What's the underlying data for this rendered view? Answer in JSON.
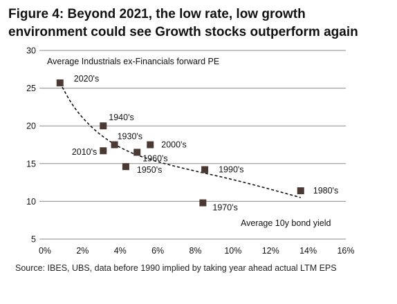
{
  "figure": {
    "title_line1": "Figure 4: Beyond 2021, the low rate, low growth",
    "title_line2": "environment could see Growth stocks outperform again",
    "source": "Source:  IBES, UBS, data before 1990 implied by taking year ahead actual LTM EPS"
  },
  "chart_data": {
    "type": "scatter",
    "ylabel": "Average Industrials ex-Financials forward PE",
    "xlabel": "Average 10y bond yield",
    "xlim": [
      0,
      16
    ],
    "ylim": [
      5,
      30
    ],
    "x_ticks": [
      "0%",
      "2%",
      "4%",
      "6%",
      "8%",
      "10%",
      "12%",
      "14%",
      "16%"
    ],
    "y_ticks": [
      "5",
      "10",
      "15",
      "20",
      "25",
      "30"
    ],
    "grid": "horizontal",
    "points": [
      {
        "label": "2020's",
        "x": 0.8,
        "y": 25.7
      },
      {
        "label": "1940's",
        "x": 3.1,
        "y": 20.0
      },
      {
        "label": "1930's",
        "x": 3.7,
        "y": 17.5
      },
      {
        "label": "2010's",
        "x": 3.1,
        "y": 16.7
      },
      {
        "label": "1960's",
        "x": 4.9,
        "y": 16.5
      },
      {
        "label": "2000's",
        "x": 5.6,
        "y": 17.5
      },
      {
        "label": "1950's",
        "x": 4.3,
        "y": 14.6
      },
      {
        "label": "1990's",
        "x": 8.5,
        "y": 14.2
      },
      {
        "label": "1980's",
        "x": 13.6,
        "y": 11.4
      },
      {
        "label": "1970's",
        "x": 8.4,
        "y": 9.8
      }
    ],
    "trendline": {
      "style": "dashed",
      "points": [
        {
          "x": 0.8,
          "y": 25.7
        },
        {
          "x": 1.5,
          "y": 22.5
        },
        {
          "x": 2.5,
          "y": 19.7
        },
        {
          "x": 3.5,
          "y": 17.8
        },
        {
          "x": 4.5,
          "y": 16.5
        },
        {
          "x": 5.5,
          "y": 15.6
        },
        {
          "x": 6.5,
          "y": 14.9
        },
        {
          "x": 8.0,
          "y": 14.0
        },
        {
          "x": 10.0,
          "y": 12.9
        },
        {
          "x": 12.0,
          "y": 11.6
        },
        {
          "x": 13.6,
          "y": 10.5
        }
      ]
    },
    "colors": {
      "marker": "#4a3a33",
      "trendline": "#111111",
      "grid": "#8a8a8a",
      "text": "#111111"
    }
  }
}
